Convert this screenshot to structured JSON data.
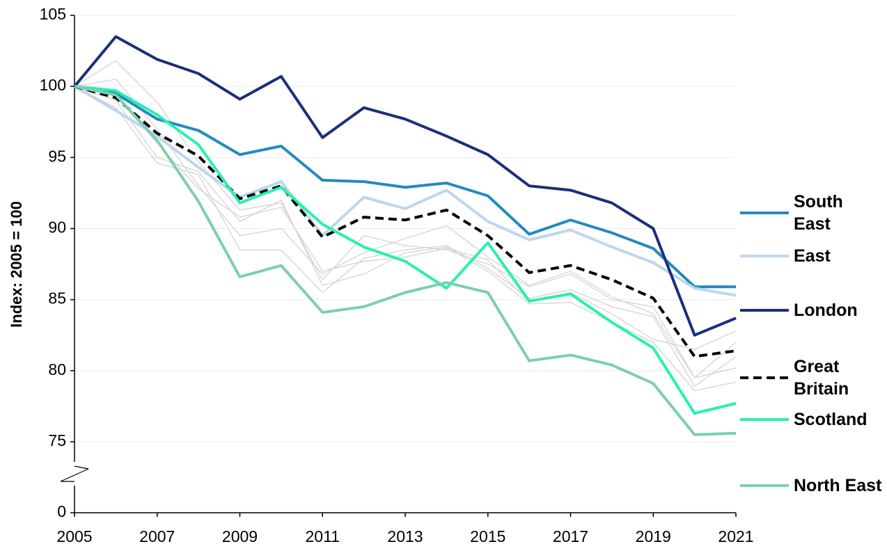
{
  "chart_data": {
    "type": "line",
    "y_label": "Index: 2005 = 100",
    "x": [
      2005,
      2006,
      2007,
      2008,
      2009,
      2010,
      2011,
      2012,
      2013,
      2014,
      2015,
      2016,
      2017,
      2018,
      2019,
      2020,
      2021
    ],
    "xlim": [
      2005,
      2021
    ],
    "xticks": [
      2005,
      2007,
      2009,
      2011,
      2013,
      2015,
      2017,
      2019,
      2021
    ],
    "ylim": [
      0,
      105
    ],
    "yticks": [
      0,
      75,
      80,
      85,
      90,
      95,
      100,
      105
    ],
    "axis_break": [
      0,
      75
    ],
    "grid": true,
    "series": [
      {
        "color": "#d0d0d0",
        "values": [
          100,
          101.8,
          98.9,
          94.7,
          91.3,
          91.8,
          86.4,
          89.5,
          88.8,
          88.5,
          87.5,
          85.9,
          86.8,
          85.0,
          84.5,
          79.5,
          80.2
        ]
      },
      {
        "color": "#d0d0d0",
        "values": [
          100,
          99.0,
          95.0,
          94.0,
          90.5,
          92.0,
          86.0,
          86.8,
          88.3,
          88.7,
          87.0,
          84.7,
          84.8,
          83.4,
          82.0,
          78.6,
          79.2
        ]
      },
      {
        "color": "#d0d0d0",
        "values": [
          100,
          100.5,
          97.0,
          93.0,
          89.5,
          90.0,
          86.8,
          88.3,
          89.3,
          90.2,
          88.0,
          86.0,
          87.0,
          85.2,
          84.0,
          79.5,
          82.0
        ]
      },
      {
        "color": "#d0d0d0",
        "values": [
          100,
          98.5,
          94.6,
          93.8,
          88.5,
          88.5,
          85.5,
          87.9,
          88.5,
          88.8,
          87.2,
          85.1,
          85.7,
          84.5,
          83.8,
          78.9,
          81.0
        ]
      },
      {
        "color": "#d0d0d0",
        "values": [
          100,
          99.3,
          96.0,
          92.8,
          90.8,
          91.5,
          87.0,
          87.7,
          88.0,
          88.6,
          87.8,
          84.8,
          85.5,
          84.0,
          82.2,
          81.5,
          82.8
        ]
      },
      {
        "name": "South East",
        "color": "#2389c2",
        "values": [
          100,
          99.5,
          97.7,
          96.9,
          95.2,
          95.8,
          93.4,
          93.3,
          92.9,
          93.2,
          92.3,
          89.6,
          90.6,
          89.7,
          88.6,
          85.9,
          85.9
        ]
      },
      {
        "name": "East",
        "color": "#bcd6ee",
        "values": [
          100,
          98.3,
          96.5,
          94.3,
          92.2,
          93.3,
          89.5,
          92.2,
          91.4,
          92.7,
          90.5,
          89.2,
          89.9,
          88.7,
          87.6,
          85.8,
          85.3
        ]
      },
      {
        "name": "London",
        "color": "#1b2f7a",
        "values": [
          100,
          103.5,
          101.9,
          100.9,
          99.1,
          100.7,
          96.4,
          98.5,
          97.7,
          96.5,
          95.2,
          93.0,
          92.7,
          91.8,
          90.0,
          82.5,
          83.7
        ]
      },
      {
        "name": "Great Britain",
        "color": "#000000",
        "dashed": true,
        "values": [
          100,
          99.2,
          96.7,
          95.1,
          92.1,
          93.0,
          89.4,
          90.8,
          90.6,
          91.3,
          89.5,
          86.9,
          87.4,
          86.4,
          85.1,
          81.0,
          81.4
        ]
      },
      {
        "name": "Scotland",
        "color": "#28f0b0",
        "values": [
          100,
          99.7,
          98.0,
          95.9,
          91.8,
          92.9,
          90.3,
          88.7,
          87.7,
          85.8,
          89.0,
          84.9,
          85.4,
          83.4,
          81.6,
          77.0,
          77.7
        ]
      },
      {
        "name": "North East",
        "color": "#7ccfae",
        "values": [
          100,
          99.4,
          96.2,
          91.9,
          86.6,
          87.4,
          84.1,
          84.5,
          85.5,
          86.2,
          85.5,
          80.7,
          81.1,
          80.4,
          79.1,
          75.5,
          75.6
        ]
      }
    ]
  }
}
